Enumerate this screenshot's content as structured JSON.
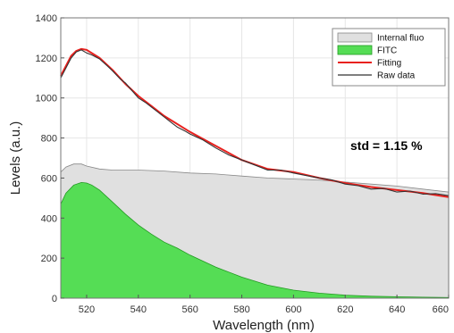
{
  "chart_data": {
    "type": "area",
    "xlabel": "Wavelength (nm)",
    "ylabel": "Levels (a.u.)",
    "xlim": [
      510,
      660
    ],
    "ylim": [
      0,
      1400
    ],
    "xticks": [
      520,
      540,
      560,
      580,
      600,
      620,
      640,
      660
    ],
    "yticks": [
      0,
      200,
      400,
      600,
      800,
      1000,
      1200,
      1400
    ],
    "grid": true,
    "legend_position": "top-right",
    "annotation": "std = 1.15 %",
    "series": [
      {
        "name": "Internal fluo",
        "style": "area",
        "color": "#e0e0e0",
        "x": [
          510,
          512,
          515,
          518,
          520,
          525,
          530,
          540,
          550,
          560,
          570,
          580,
          590,
          600,
          610,
          620,
          630,
          640,
          650,
          660
        ],
        "y": [
          630,
          655,
          670,
          670,
          660,
          645,
          640,
          640,
          635,
          625,
          620,
          610,
          600,
          595,
          590,
          580,
          570,
          560,
          545,
          530
        ]
      },
      {
        "name": "FITC",
        "style": "area",
        "color": "#55dd55",
        "x": [
          510,
          512,
          515,
          518,
          520,
          522,
          525,
          530,
          535,
          540,
          545,
          550,
          555,
          560,
          570,
          580,
          590,
          600,
          610,
          620,
          630,
          640,
          650,
          660
        ],
        "y": [
          470,
          525,
          565,
          578,
          575,
          565,
          540,
          480,
          420,
          365,
          320,
          280,
          250,
          215,
          155,
          105,
          65,
          40,
          25,
          15,
          10,
          7,
          5,
          3
        ]
      },
      {
        "name": "Fitting",
        "style": "line",
        "color": "#e8211e",
        "x": [
          510,
          512,
          514,
          516,
          518,
          520,
          525,
          530,
          535,
          540,
          545,
          550,
          560,
          570,
          580,
          590,
          600,
          610,
          620,
          630,
          640,
          650,
          660
        ],
        "y": [
          1110,
          1160,
          1210,
          1235,
          1245,
          1240,
          1200,
          1140,
          1070,
          1010,
          960,
          910,
          830,
          760,
          690,
          645,
          630,
          600,
          575,
          555,
          540,
          525,
          505
        ]
      },
      {
        "name": "Raw data",
        "style": "line",
        "color": "#333333",
        "x": [
          510,
          512,
          514,
          516,
          518,
          520,
          522,
          525,
          528,
          530,
          533,
          535,
          538,
          540,
          543,
          545,
          548,
          550,
          553,
          555,
          558,
          560,
          565,
          570,
          575,
          580,
          585,
          590,
          595,
          600,
          605,
          610,
          615,
          620,
          625,
          630,
          635,
          640,
          645,
          650,
          655,
          660
        ],
        "y": [
          1100,
          1150,
          1200,
          1230,
          1240,
          1225,
          1215,
          1195,
          1160,
          1135,
          1095,
          1075,
          1030,
          1000,
          975,
          955,
          925,
          905,
          875,
          855,
          835,
          820,
          790,
          750,
          715,
          690,
          665,
          640,
          640,
          625,
          612,
          600,
          590,
          570,
          562,
          545,
          548,
          530,
          535,
          520,
          522,
          512
        ]
      }
    ]
  }
}
